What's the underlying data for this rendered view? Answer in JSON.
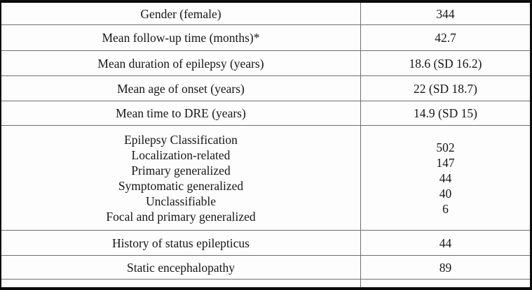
{
  "table": {
    "rows": [
      {
        "label": "Gender (female)",
        "value": "344"
      },
      {
        "label": "Mean follow-up time (months)*",
        "value": "42.7"
      },
      {
        "label": "Mean duration of epilepsy (years)",
        "value": "18.6 (SD 16.2)"
      },
      {
        "label": "Mean age of onset (years)",
        "value": "22 (SD 18.7)"
      },
      {
        "label": "Mean time to DRE (years)",
        "value": "14.9 (SD 15)"
      },
      {
        "label_lines": [
          "Epilepsy Classification",
          "Localization-related",
          "Primary generalized",
          "Symptomatic generalized",
          "Unclassifiable",
          "Focal and primary generalized"
        ],
        "value_lines": [
          "502",
          "147",
          "44",
          "40",
          "6"
        ]
      },
      {
        "label": "History of status epilepticus",
        "value": "44"
      },
      {
        "label": "Static encephalopathy",
        "value": "89"
      },
      {
        "label": "",
        "value": ""
      }
    ],
    "colors": {
      "outer_border": "#0c0c0c",
      "grid_line": "#6f6f6f",
      "text": "#161616",
      "background": "#fdfdfd"
    }
  }
}
